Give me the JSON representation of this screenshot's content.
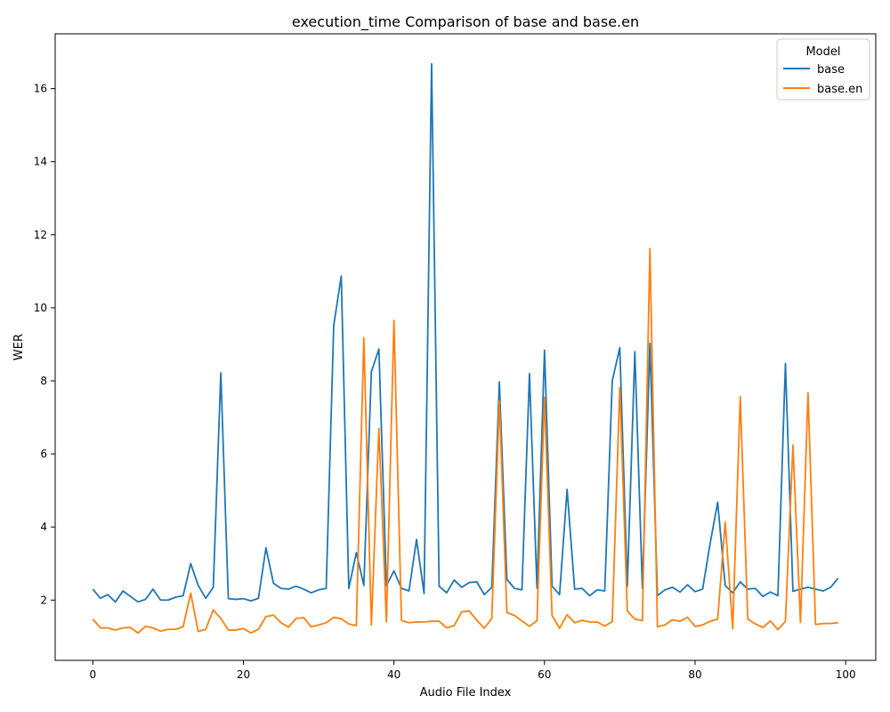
{
  "chart_data": {
    "type": "line",
    "title": "execution_time Comparison of base and base.en",
    "xlabel": "Audio File Index",
    "ylabel": "WER",
    "xlim": [
      -5,
      104
    ],
    "ylim": [
      0.35,
      17.5
    ],
    "xticks": [
      0,
      20,
      40,
      60,
      80,
      100
    ],
    "yticks": [
      2,
      4,
      6,
      8,
      10,
      12,
      14,
      16
    ],
    "grid": false,
    "legend": {
      "title": "Model",
      "placement": "top-right"
    },
    "series": [
      {
        "name": "base",
        "color": "#1f77b4",
        "values": [
          2.3,
          2.05,
          2.15,
          1.95,
          2.25,
          2.1,
          1.95,
          2.02,
          2.3,
          2.0,
          2.0,
          2.08,
          2.12,
          3.0,
          2.4,
          2.05,
          2.35,
          8.22,
          2.04,
          2.02,
          2.04,
          1.98,
          2.05,
          3.43,
          2.46,
          2.32,
          2.3,
          2.38,
          2.3,
          2.2,
          2.28,
          2.32,
          9.52,
          10.87,
          2.32,
          3.3,
          2.4,
          8.25,
          8.87,
          2.4,
          2.8,
          2.32,
          2.25,
          3.66,
          2.18,
          16.68,
          2.38,
          2.2,
          2.55,
          2.35,
          2.48,
          2.5,
          2.15,
          2.35,
          7.97,
          2.57,
          2.32,
          2.28,
          8.2,
          2.32,
          8.84,
          2.38,
          2.15,
          5.03,
          2.3,
          2.32,
          2.12,
          2.28,
          2.25,
          8.0,
          8.91,
          2.37,
          8.8,
          2.32,
          9.03,
          2.12,
          2.28,
          2.35,
          2.22,
          2.42,
          2.23,
          2.3,
          3.55,
          4.68,
          2.4,
          2.2,
          2.5,
          2.3,
          2.32,
          2.1,
          2.22,
          2.12,
          8.48,
          2.24,
          2.3,
          2.35,
          2.3,
          2.25,
          2.35,
          2.6
        ]
      },
      {
        "name": "base.en",
        "color": "#ff7f0e",
        "values": [
          1.48,
          1.24,
          1.24,
          1.18,
          1.24,
          1.25,
          1.1,
          1.28,
          1.24,
          1.15,
          1.2,
          1.2,
          1.27,
          2.19,
          1.14,
          1.2,
          1.73,
          1.5,
          1.18,
          1.18,
          1.22,
          1.1,
          1.2,
          1.55,
          1.59,
          1.38,
          1.26,
          1.5,
          1.52,
          1.27,
          1.32,
          1.38,
          1.53,
          1.49,
          1.35,
          1.3,
          9.18,
          1.32,
          6.7,
          1.4,
          9.66,
          1.44,
          1.38,
          1.4,
          1.4,
          1.42,
          1.42,
          1.24,
          1.3,
          1.68,
          1.7,
          1.45,
          1.23,
          1.5,
          7.45,
          1.66,
          1.58,
          1.43,
          1.28,
          1.44,
          7.55,
          1.58,
          1.23,
          1.6,
          1.38,
          1.45,
          1.4,
          1.4,
          1.29,
          1.41,
          7.82,
          1.7,
          1.48,
          1.44,
          11.62,
          1.27,
          1.32,
          1.46,
          1.42,
          1.53,
          1.28,
          1.32,
          1.42,
          1.48,
          4.14,
          1.22,
          7.57,
          1.48,
          1.35,
          1.25,
          1.43,
          1.19,
          1.42,
          6.24,
          1.39,
          7.67,
          1.33,
          1.36,
          1.36,
          1.38
        ]
      }
    ]
  }
}
